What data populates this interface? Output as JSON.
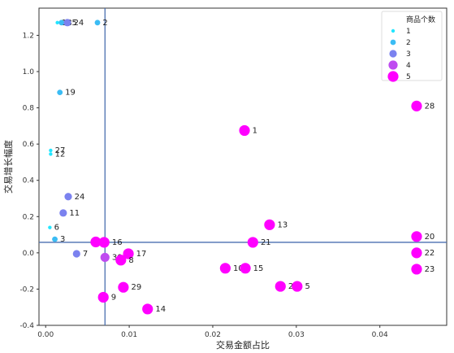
{
  "chart_data": {
    "type": "scatter",
    "xlabel": "交易金额占比",
    "ylabel": "交易增长幅度",
    "xlim": [
      -0.0008,
      0.048
    ],
    "ylim": [
      -0.4,
      1.35
    ],
    "xticks": [
      "0.00",
      "0.01",
      "0.02",
      "0.03",
      "0.04"
    ],
    "xtick_values": [
      0.0,
      0.01,
      0.02,
      0.03,
      0.04
    ],
    "yticks": [
      "-0.4",
      "-0.2",
      "0.0",
      "0.2",
      "0.4",
      "0.6",
      "0.8",
      "1.0",
      "1.2"
    ],
    "ytick_values": [
      -0.4,
      -0.2,
      0.0,
      0.2,
      0.4,
      0.6,
      0.8,
      1.0,
      1.2
    ],
    "reference_lines": {
      "x": 0.0071,
      "y": 0.058
    },
    "grid": false,
    "legend": {
      "title": "商品个数",
      "placement": "top-right",
      "entries": [
        {
          "label": "1",
          "size_level": 1,
          "color": "#22e6ff"
        },
        {
          "label": "2",
          "size_level": 2,
          "color": "#3bbcf4"
        },
        {
          "label": "3",
          "size_level": 3,
          "color": "#7b82ef"
        },
        {
          "label": "4",
          "size_level": 4,
          "color": "#bf4cf0"
        },
        {
          "label": "5",
          "size_level": 5,
          "color": "#ff00ff"
        }
      ]
    },
    "points": [
      {
        "label": "2",
        "x": 0.0062,
        "y": 1.27,
        "level": 2
      },
      {
        "label": "18",
        "x": 0.0014,
        "y": 1.27,
        "level": 1
      },
      {
        "label": "25",
        "x": 0.0019,
        "y": 1.27,
        "level": 2
      },
      {
        "label": "24",
        "x": 0.0026,
        "y": 1.27,
        "level": 3
      },
      {
        "label": "19",
        "x": 0.0017,
        "y": 0.885,
        "level": 2
      },
      {
        "label": "27",
        "x": 0.0006,
        "y": 0.565,
        "level": 1
      },
      {
        "label": "12",
        "x": 0.0006,
        "y": 0.545,
        "level": 1
      },
      {
        "label": "24",
        "x": 0.0027,
        "y": 0.31,
        "level": 3
      },
      {
        "label": "11",
        "x": 0.0021,
        "y": 0.22,
        "level": 3
      },
      {
        "label": "6",
        "x": 0.0005,
        "y": 0.14,
        "level": 1
      },
      {
        "label": "3",
        "x": 0.0011,
        "y": 0.075,
        "level": 2
      },
      {
        "label": "7",
        "x": 0.0037,
        "y": -0.005,
        "level": 3
      },
      {
        "label": "0",
        "x": 0.006,
        "y": 0.06,
        "level": 5
      },
      {
        "label": "16",
        "x": 0.007,
        "y": 0.058,
        "level": 5
      },
      {
        "label": "30",
        "x": 0.0071,
        "y": -0.025,
        "level": 4
      },
      {
        "label": "17",
        "x": 0.0099,
        "y": -0.005,
        "level": 5
      },
      {
        "label": "8",
        "x": 0.009,
        "y": -0.04,
        "level": 5
      },
      {
        "label": "9",
        "x": 0.0069,
        "y": -0.245,
        "level": 5
      },
      {
        "label": "29",
        "x": 0.0093,
        "y": -0.19,
        "level": 5
      },
      {
        "label": "14",
        "x": 0.0122,
        "y": -0.31,
        "level": 5
      },
      {
        "label": "1",
        "x": 0.0238,
        "y": 0.675,
        "level": 5
      },
      {
        "label": "13",
        "x": 0.0268,
        "y": 0.155,
        "level": 5
      },
      {
        "label": "21",
        "x": 0.0248,
        "y": 0.058,
        "level": 5
      },
      {
        "label": "10",
        "x": 0.0215,
        "y": -0.085,
        "level": 5
      },
      {
        "label": "15",
        "x": 0.0239,
        "y": -0.085,
        "level": 5
      },
      {
        "label": "26",
        "x": 0.0281,
        "y": -0.185,
        "level": 5
      },
      {
        "label": "5",
        "x": 0.0301,
        "y": -0.185,
        "level": 5
      },
      {
        "label": "28",
        "x": 0.0444,
        "y": 0.81,
        "level": 5
      },
      {
        "label": "20",
        "x": 0.0444,
        "y": 0.09,
        "level": 5
      },
      {
        "label": "22",
        "x": 0.0444,
        "y": 0.0,
        "level": 5
      },
      {
        "label": "23",
        "x": 0.0444,
        "y": -0.09,
        "level": 5
      }
    ]
  }
}
